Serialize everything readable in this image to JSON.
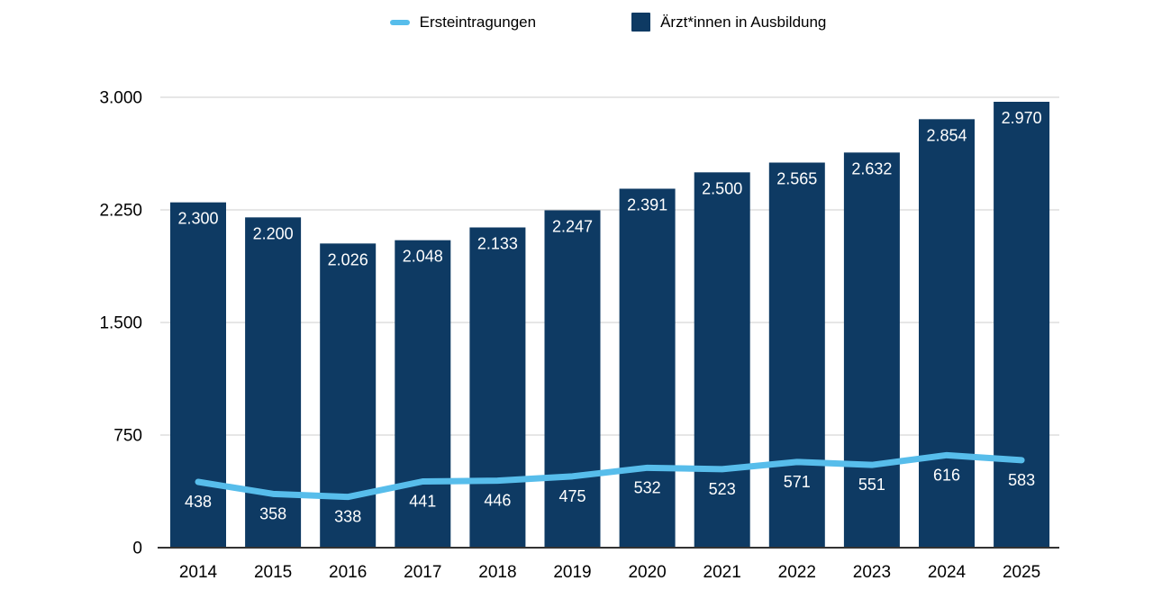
{
  "legend": {
    "items": [
      {
        "label": "Ersteintragungen",
        "marker": "line-dash",
        "color": "#57bdeb"
      },
      {
        "label": "Ärzt*innen in Ausbildung",
        "marker": "square",
        "color": "#0e3a63"
      }
    ]
  },
  "chart_data": {
    "type": "bar",
    "title": "",
    "xlabel": "",
    "ylabel": "",
    "categories": [
      "2014",
      "2015",
      "2016",
      "2017",
      "2018",
      "2019",
      "2020",
      "2021",
      "2022",
      "2023",
      "2024",
      "2025"
    ],
    "series": [
      {
        "name": "Ärzt*innen in Ausbildung",
        "type": "bar",
        "color": "#0e3a63",
        "values": [
          2300,
          2200,
          2026,
          2048,
          2133,
          2247,
          2391,
          2500,
          2565,
          2632,
          2854,
          2970
        ],
        "labels": [
          "2.300",
          "2.200",
          "2.026",
          "2.048",
          "2.133",
          "2.247",
          "2.391",
          "2.500",
          "2.565",
          "2.632",
          "2.854",
          "2.970"
        ]
      },
      {
        "name": "Ersteintragungen",
        "type": "line",
        "color": "#57bdeb",
        "values": [
          438,
          358,
          338,
          441,
          446,
          475,
          532,
          523,
          571,
          551,
          616,
          583
        ],
        "labels": [
          "438",
          "358",
          "338",
          "441",
          "446",
          "475",
          "532",
          "523",
          "571",
          "551",
          "616",
          "583"
        ]
      }
    ],
    "ylim": [
      0,
      3000
    ],
    "yticks": [
      0,
      750,
      1500,
      2250,
      3000
    ],
    "ytick_labels": [
      "0",
      "750",
      "1.500",
      "2.250",
      "3.000"
    ],
    "grid": true,
    "legend_position": "top"
  },
  "colors": {
    "bar": "#0e3a63",
    "line": "#57bdeb",
    "gridline": "#cccccc",
    "axis": "#333333",
    "label_on_bar": "#ffffff",
    "axis_text": "#000000"
  }
}
